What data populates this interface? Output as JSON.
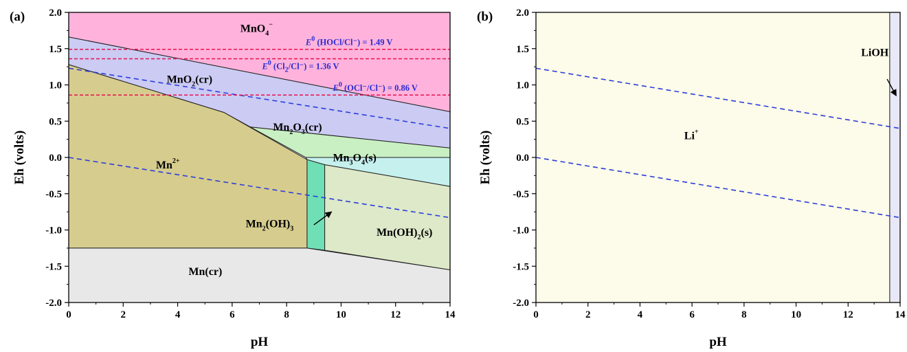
{
  "chart_data": [
    {
      "type": "area",
      "panel_label": "(a)",
      "xlabel": "pH",
      "ylabel": "Eh (volts)",
      "xlim": [
        0,
        14
      ],
      "ylim": [
        -2.0,
        2.0
      ],
      "x_ticks": [
        0,
        2,
        4,
        6,
        8,
        10,
        12,
        14
      ],
      "y_ticks": [
        "2.0",
        "1.5",
        "1.0",
        "0.5",
        "0.0",
        "-0.5",
        "-1.0",
        "-1.5",
        "-2.0"
      ],
      "regions": [
        {
          "name": "MnO4-",
          "label": "MnO",
          "sub": "4",
          "sup": "−",
          "color": "#ffb3dc",
          "label_at": [
            6.3,
            1.73
          ],
          "points": [
            [
              0,
              2.0
            ],
            [
              14,
              2.0
            ],
            [
              14,
              0.63
            ],
            [
              0,
              1.66
            ]
          ]
        },
        {
          "name": "MnO2(cr)",
          "label": "MnO",
          "sub": "2",
          "tail": "(cr)",
          "color": "#cbcbf3",
          "label_at": [
            3.6,
            1.03
          ],
          "points": [
            [
              0,
              1.66
            ],
            [
              14,
              0.63
            ],
            [
              14,
              0.13
            ],
            [
              6.4,
              0.43
            ],
            [
              5.7,
              0.62
            ],
            [
              0,
              1.28
            ]
          ]
        },
        {
          "name": "Mn2O3(cr)",
          "label": "Mn",
          "sub": "2",
          "mid": "O",
          "sub2": "3",
          "tail": "(cr)",
          "color": "#c9f0c2",
          "label_at": [
            7.5,
            0.37
          ],
          "points": [
            [
              5.7,
              0.62
            ],
            [
              6.4,
              0.43
            ],
            [
              14,
              0.13
            ],
            [
              14,
              0.0
            ],
            [
              8.7,
              0.0
            ]
          ]
        },
        {
          "name": "Mn3O4(s)",
          "label": "Mn",
          "sub": "3",
          "mid": "O",
          "sub2": "4",
          "tail": "(s)",
          "color": "#c5f0ee",
          "label_at": [
            9.7,
            -0.05
          ],
          "points": [
            [
              8.7,
              0.0
            ],
            [
              14,
              0.0
            ],
            [
              14,
              -0.4
            ],
            [
              9.4,
              -0.1
            ],
            [
              8.75,
              -0.03
            ]
          ]
        },
        {
          "name": "Mn2+",
          "label": "Mn",
          "sup": "2+",
          "color": "#d6cc8e",
          "label_at": [
            3.2,
            -0.15
          ],
          "points": [
            [
              0,
              1.28
            ],
            [
              5.7,
              0.62
            ],
            [
              8.75,
              -0.03
            ],
            [
              8.75,
              -1.25
            ],
            [
              0,
              -1.25
            ]
          ]
        },
        {
          "name": "Mn2(OH)3",
          "label": "Mn",
          "sub": "2",
          "mid": "(OH)",
          "sub2": "3",
          "color": "#6fdfb5",
          "label_at": [
            6.5,
            -0.96
          ],
          "points": [
            [
              8.75,
              -0.03
            ],
            [
              9.4,
              -0.1
            ],
            [
              9.4,
              -1.28
            ],
            [
              8.75,
              -1.25
            ]
          ]
        },
        {
          "name": "Mn(OH)2(s)",
          "label": "Mn(OH)",
          "sub": "2",
          "tail": "(s)",
          "color": "#dde9c9",
          "label_at": [
            11.3,
            -1.08
          ],
          "points": [
            [
              9.4,
              -0.1
            ],
            [
              14,
              -0.4
            ],
            [
              14,
              -1.55
            ],
            [
              9.4,
              -1.28
            ]
          ]
        },
        {
          "name": "Mn(cr)",
          "label": "Mn(cr)",
          "color": "#e8e8e8",
          "label_at": [
            4.4,
            -1.62
          ],
          "points": [
            [
              0,
              -1.25
            ],
            [
              8.75,
              -1.25
            ],
            [
              14,
              -1.55
            ],
            [
              14,
              -2.0
            ],
            [
              0,
              -2.0
            ]
          ]
        }
      ],
      "water_lines": [
        {
          "x": [
            0,
            14
          ],
          "y": [
            1.23,
            0.4
          ]
        },
        {
          "x": [
            0,
            14
          ],
          "y": [
            0.0,
            -0.83
          ]
        }
      ],
      "reference_lines": [
        {
          "y": 1.49,
          "label": "(HOCl/Cl⁻) = 1.49 V",
          "prefix": "E",
          "sup": "0",
          "label_at": [
            8.7,
            1.55
          ]
        },
        {
          "y": 1.36,
          "label_a": "(Cl",
          "sub": "2",
          "label_b": "/Cl⁻) = 1.36 V",
          "prefix": "E",
          "sup": "0",
          "label_at": [
            7.1,
            1.22
          ]
        },
        {
          "y": 0.86,
          "label": "(OCl⁻/Cl⁻) = 0.86 V",
          "prefix": "E",
          "sup": "0",
          "label_at": [
            9.7,
            0.92
          ]
        }
      ],
      "arrow": {
        "from": [
          9.0,
          -0.93
        ],
        "to": [
          9.65,
          -0.75
        ]
      }
    },
    {
      "type": "area",
      "panel_label": "(b)",
      "xlabel": "pH",
      "ylabel": "Eh (volts)",
      "xlim": [
        0,
        14
      ],
      "ylim": [
        -2.0,
        2.0
      ],
      "x_ticks": [
        0,
        2,
        4,
        6,
        8,
        10,
        12,
        14
      ],
      "y_ticks": [
        "2.0",
        "1.5",
        "1.0",
        "0.5",
        "0.0",
        "-0.5",
        "-1.0",
        "-1.5",
        "-2.0"
      ],
      "regions": [
        {
          "name": "Li+",
          "label": "Li",
          "sup": "+",
          "color": "#fdfbe9",
          "label_at": [
            5.7,
            0.25
          ],
          "points": [
            [
              0,
              2.0
            ],
            [
              13.6,
              2.0
            ],
            [
              13.6,
              -2.0
            ],
            [
              0,
              -2.0
            ]
          ]
        },
        {
          "name": "LiOH",
          "label": "LiOH",
          "color": "#e9e8f7",
          "label_at": [
            12.5,
            1.4
          ],
          "points": [
            [
              13.6,
              2.0
            ],
            [
              14,
              2.0
            ],
            [
              14,
              -2.0
            ],
            [
              13.6,
              -2.0
            ]
          ]
        }
      ],
      "water_lines": [
        {
          "x": [
            0,
            14
          ],
          "y": [
            1.23,
            0.4
          ]
        },
        {
          "x": [
            0,
            14
          ],
          "y": [
            0.0,
            -0.83
          ]
        }
      ],
      "arrow": {
        "from": [
          13.5,
          1.08
        ],
        "to": [
          13.85,
          0.85
        ]
      }
    }
  ]
}
